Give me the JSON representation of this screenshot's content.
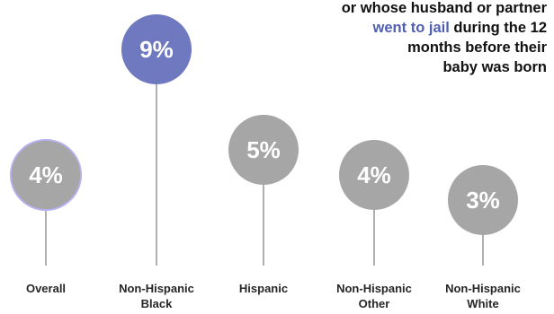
{
  "colors": {
    "highlight": "#6e79bf",
    "default": "#a6a6a6",
    "overall_border": "#b6b0ef",
    "stem": "#b0b0b0",
    "label_text": "#262626",
    "highlight_text": "#4f5fb0"
  },
  "annotation": {
    "line1": "or whose husband or partner",
    "line2_highlight": "went to jail",
    "line2_rest": " during the 12",
    "line3": "months before their",
    "line4": "baby was born"
  },
  "chart_data": {
    "type": "scatter",
    "categories": [
      "Overall",
      "Non-Hispanic Black",
      "Hispanic",
      "Non-Hispanic Other",
      "Non-Hispanic White"
    ],
    "category_lines": [
      [
        "Overall"
      ],
      [
        "Non-Hispanic",
        "Black"
      ],
      [
        "Hispanic"
      ],
      [
        "Non-Hispanic",
        "Other"
      ],
      [
        "Non-Hispanic",
        "White"
      ]
    ],
    "values": [
      4,
      9,
      5,
      4,
      3
    ],
    "value_labels": [
      "4%",
      "9%",
      "5%",
      "4%",
      "3%"
    ],
    "highlight_index": 1,
    "overall_index": 0,
    "ylim": [
      0,
      10
    ],
    "grid": false
  }
}
